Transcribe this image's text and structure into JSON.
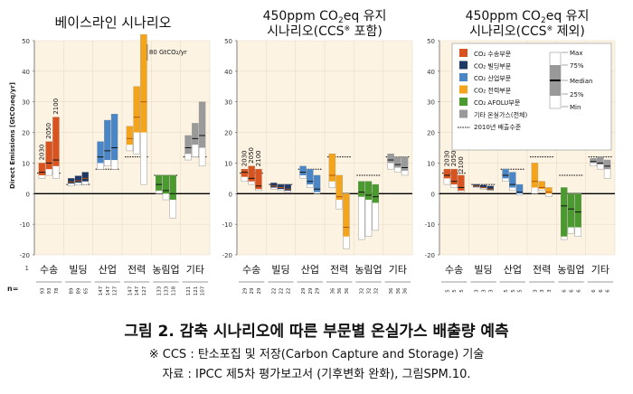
{
  "figure": {
    "caption": "그림 2. 감축 시나리오에 따른 부문별 온실가스 배출량 예측",
    "note": "※ CCS : 탄소포집 및 저장(Carbon Capture and Storage) 기술",
    "source": "자료 : IPCC 제5차 평가보고서 (기후변화 완화), 그림SPM.10."
  },
  "legend": {
    "items": [
      {
        "label": "CO₂ 수송부문",
        "color": "#d9531e"
      },
      {
        "label": "CO₂ 빌딩부문",
        "color": "#1f3864"
      },
      {
        "label": "CO₂ 산업부문",
        "color": "#4a86c5"
      },
      {
        "label": "CO₂ 전력부문",
        "color": "#f2a41c"
      },
      {
        "label": "CO₂ AFOLU부문",
        "color": "#4a9a2f"
      },
      {
        "label": "기타 온실가스(전체)",
        "color": "#9a9a9a"
      },
      {
        "label": "2010년 배출수준",
        "color": "#000000"
      }
    ],
    "stats": [
      "Max",
      "75%",
      "Median",
      "25%",
      "Min"
    ]
  },
  "common": {
    "ylabel": "Direct Emissions [GtCO₂eq/yr]",
    "n_label": "n=",
    "sectors": [
      "수송",
      "빌딩",
      "산업",
      "전력",
      "농림업",
      "기타"
    ],
    "years": [
      "2030",
      "2050",
      "2100"
    ],
    "ylim": [
      -20,
      50
    ],
    "yticks": [
      -20,
      -10,
      0,
      10,
      20,
      30,
      40,
      50
    ],
    "panel1_bottom_tick": "1",
    "offscale_note": "80 GtCO₂/yr"
  },
  "chart_data": [
    {
      "type": "box",
      "title": "베이스라인 시나리오",
      "subtitle": "",
      "baseline_2010": [
        6.7,
        3.0,
        8.0,
        12.0,
        6.0,
        12.0
      ],
      "n": [
        [
          93,
          93,
          78
        ],
        [
          89,
          89,
          65
        ],
        [
          147,
          147,
          127
        ],
        [
          147,
          147,
          127
        ],
        [
          133,
          133,
          118
        ],
        [
          121,
          121,
          107
        ]
      ],
      "boxes": [
        [
          [
            5,
            8,
            7,
            6,
            10
          ],
          [
            6,
            12,
            10,
            8,
            17
          ],
          [
            5,
            14,
            11,
            9,
            25
          ]
        ],
        [
          [
            2.5,
            4.5,
            3.8,
            3.3,
            5
          ],
          [
            2.8,
            5,
            4.2,
            3.6,
            5.8
          ],
          [
            3,
            6,
            5,
            4,
            7
          ]
        ],
        [
          [
            8,
            14,
            12,
            10,
            17
          ],
          [
            9,
            18,
            14,
            11,
            24
          ],
          [
            8,
            20,
            15,
            11,
            26
          ]
        ],
        [
          [
            14,
            20,
            18,
            16,
            22
          ],
          [
            13,
            28,
            25,
            20,
            35
          ],
          [
            3,
            40,
            30,
            20,
            52
          ]
        ],
        [
          [
            0,
            5,
            3,
            1,
            6
          ],
          [
            -2,
            4,
            1,
            0,
            6
          ],
          [
            -8,
            3,
            0,
            -2,
            6
          ]
        ],
        [
          [
            11,
            17,
            15,
            13,
            19
          ],
          [
            12,
            21,
            18,
            16,
            23
          ],
          [
            9,
            24,
            19,
            15,
            30
          ]
        ]
      ]
    },
    {
      "type": "box",
      "title_main": "450ppm CO",
      "title_sub": "2",
      "title_rest": "eq 유지",
      "subtitle_main": "시나리오(CCS",
      "subtitle_mark": "※",
      "subtitle_rest": " 포함)",
      "baseline_2010": [
        6.7,
        3.0,
        8.0,
        12.0,
        6.0,
        12.0
      ],
      "n": [
        [
          29,
          29,
          29
        ],
        [
          22,
          22,
          22
        ],
        [
          29,
          29,
          29
        ],
        [
          36,
          36,
          36
        ],
        [
          32,
          32,
          32
        ],
        [
          36,
          36,
          36
        ]
      ],
      "boxes": [
        [
          [
            4,
            7.5,
            7,
            5.5,
            8
          ],
          [
            3,
            6.5,
            5,
            4,
            9
          ],
          [
            1,
            5,
            2.5,
            1.5,
            8
          ]
        ],
        [
          [
            1.5,
            3,
            2.5,
            2,
            3.5
          ],
          [
            1,
            2.5,
            2,
            1.5,
            3
          ],
          [
            0.5,
            2,
            1.5,
            1,
            3
          ]
        ],
        [
          [
            5,
            8,
            7,
            6,
            9
          ],
          [
            2,
            6,
            4,
            3,
            8
          ],
          [
            0,
            4,
            1.5,
            0.5,
            6
          ]
        ],
        [
          [
            2,
            9,
            6,
            4,
            13
          ],
          [
            -5,
            3,
            -1,
            -2,
            6
          ],
          [
            -18,
            -4,
            -11,
            -14,
            0
          ]
        ],
        [
          [
            -15,
            2,
            0.5,
            -1,
            4
          ],
          [
            -14,
            1,
            -0.5,
            -2,
            4
          ],
          [
            -12,
            0,
            -1,
            -3,
            3
          ]
        ],
        [
          [
            8,
            12,
            11,
            10,
            13
          ],
          [
            7,
            11,
            9.5,
            8.5,
            12
          ],
          [
            6,
            11,
            8.5,
            7.5,
            12
          ]
        ]
      ]
    },
    {
      "type": "box",
      "title_main": "450ppm CO",
      "title_sub": "2",
      "title_rest": "eq 유지",
      "subtitle_main": "시나리오(CCS",
      "subtitle_mark": "※",
      "subtitle_rest": " 제외)",
      "baseline_2010": [
        6.7,
        3.0,
        8.0,
        12.0,
        6.0,
        12.0
      ],
      "n": [
        [
          5,
          5,
          5
        ],
        [
          3,
          3,
          3
        ],
        [
          5,
          5,
          5
        ],
        [
          3,
          3,
          3
        ],
        [
          6,
          6,
          6
        ],
        [
          6,
          6,
          6
        ]
      ],
      "boxes": [
        [
          [
            3,
            6.5,
            6,
            5,
            8
          ],
          [
            2,
            5.5,
            4,
            3,
            8
          ],
          [
            0.5,
            4,
            2,
            1,
            6
          ]
        ],
        [
          [
            2,
            2.8,
            2.5,
            2.2,
            3
          ],
          [
            1.5,
            2.5,
            2,
            1.8,
            2.8
          ],
          [
            1,
            2,
            1.5,
            1.2,
            2.5
          ]
        ],
        [
          [
            4,
            7,
            6,
            5,
            8
          ],
          [
            1,
            5,
            3,
            2,
            7
          ],
          [
            -0.5,
            2,
            0.5,
            0,
            3
          ]
        ],
        [
          [
            0,
            10,
            4,
            2,
            10
          ],
          [
            1,
            3,
            2,
            1.5,
            4
          ],
          [
            -1,
            1.5,
            0.5,
            0,
            2
          ]
        ],
        [
          [
            -15,
            -1,
            -4,
            -14,
            2
          ],
          [
            -13,
            -2,
            -5,
            -11,
            0
          ],
          [
            -14,
            -1,
            -6,
            -11,
            0
          ]
        ],
        [
          [
            9,
            11,
            10.5,
            10,
            11.5
          ],
          [
            8,
            11,
            10,
            9.5,
            12
          ],
          [
            5,
            10,
            9,
            8,
            11
          ]
        ]
      ]
    }
  ]
}
